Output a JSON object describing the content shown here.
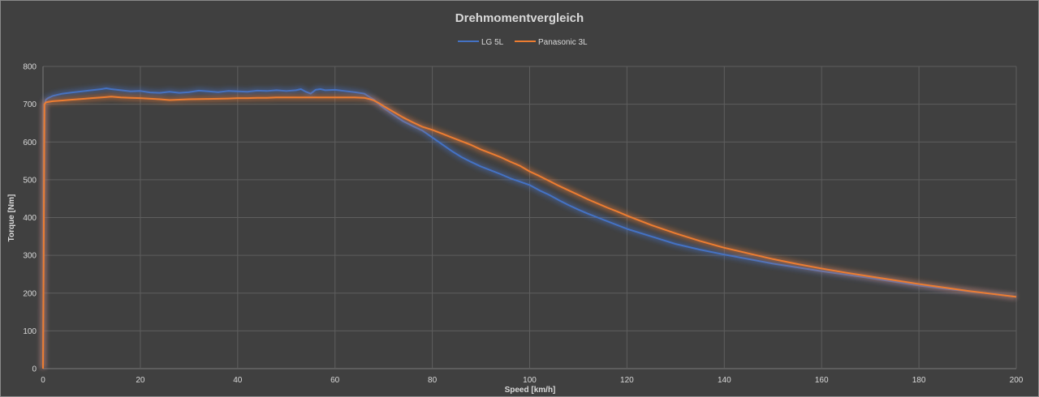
{
  "chart_data": {
    "type": "line",
    "title": "Drehmomentvergleich",
    "xlabel": "Speed [km/h]",
    "ylabel": "Torque [Nm]",
    "xlim": [
      0,
      200
    ],
    "ylim": [
      0,
      800
    ],
    "xticks": [
      0,
      20,
      40,
      60,
      80,
      100,
      120,
      140,
      160,
      180,
      200
    ],
    "yticks": [
      0,
      100,
      200,
      300,
      400,
      500,
      600,
      700,
      800
    ],
    "grid": true,
    "legend_position": "top-center",
    "background_color": "#404040",
    "series": [
      {
        "name": "LG 5L",
        "color": "#4472c4",
        "glow_color": "#4472c4",
        "x": [
          0,
          0.3,
          0.6,
          1,
          2,
          4,
          6,
          8,
          10,
          12,
          13,
          14,
          16,
          18,
          20,
          22,
          24,
          26,
          28,
          30,
          32,
          34,
          36,
          38,
          40,
          42,
          44,
          46,
          48,
          50,
          52,
          53,
          54,
          55,
          56,
          57,
          58,
          60,
          62,
          64,
          66,
          67,
          68,
          69,
          70,
          72,
          74,
          76,
          78,
          80,
          82,
          84,
          86,
          88,
          90,
          92,
          94,
          96,
          98,
          100,
          102,
          104,
          106,
          108,
          110,
          112,
          114,
          116,
          118,
          120,
          125,
          130,
          135,
          140,
          145,
          150,
          155,
          160,
          165,
          170,
          175,
          180,
          185,
          190,
          195,
          200
        ],
        "y": [
          0,
          700,
          712,
          716,
          722,
          728,
          731,
          734,
          737,
          740,
          742,
          740,
          737,
          734,
          735,
          731,
          730,
          733,
          730,
          732,
          736,
          734,
          732,
          735,
          734,
          733,
          736,
          735,
          737,
          735,
          737,
          740,
          733,
          728,
          738,
          740,
          737,
          738,
          735,
          732,
          728,
          720,
          712,
          700,
          690,
          672,
          655,
          642,
          630,
          612,
          594,
          576,
          560,
          547,
          535,
          525,
          515,
          504,
          495,
          486,
          472,
          460,
          446,
          433,
          421,
          410,
          400,
          390,
          380,
          370,
          350,
          330,
          315,
          302,
          290,
          278,
          268,
          258,
          249,
          240,
          230,
          220,
          212,
          205,
          198,
          190
        ]
      },
      {
        "name": "Panasonic 3L",
        "color": "#ed7d31",
        "glow_color": "#ed7d31",
        "x": [
          0,
          0.3,
          0.6,
          1,
          2,
          4,
          6,
          8,
          10,
          12,
          14,
          16,
          18,
          20,
          24,
          26,
          28,
          30,
          34,
          38,
          40,
          42,
          44,
          46,
          48,
          50,
          52,
          54,
          56,
          58,
          60,
          62,
          64,
          66,
          67,
          68,
          69,
          70,
          72,
          74,
          76,
          78,
          80,
          82,
          84,
          86,
          88,
          90,
          92,
          94,
          96,
          98,
          100,
          102,
          104,
          106,
          108,
          110,
          112,
          114,
          116,
          118,
          120,
          125,
          130,
          135,
          140,
          145,
          150,
          155,
          160,
          165,
          170,
          175,
          180,
          185,
          190,
          195,
          200
        ],
        "y": [
          0,
          700,
          705,
          706,
          708,
          710,
          712,
          714,
          716,
          718,
          720,
          718,
          717,
          716,
          713,
          711,
          712,
          713,
          714,
          715,
          716,
          716,
          717,
          717,
          718,
          718,
          718,
          718,
          718,
          718,
          718,
          718,
          718,
          717,
          714,
          710,
          703,
          695,
          680,
          665,
          652,
          640,
          632,
          622,
          612,
          602,
          592,
          580,
          570,
          560,
          548,
          537,
          522,
          510,
          497,
          484,
          472,
          460,
          448,
          437,
          426,
          416,
          405,
          380,
          358,
          338,
          320,
          305,
          290,
          277,
          265,
          254,
          244,
          234,
          224,
          215,
          206,
          198,
          190
        ]
      }
    ]
  }
}
